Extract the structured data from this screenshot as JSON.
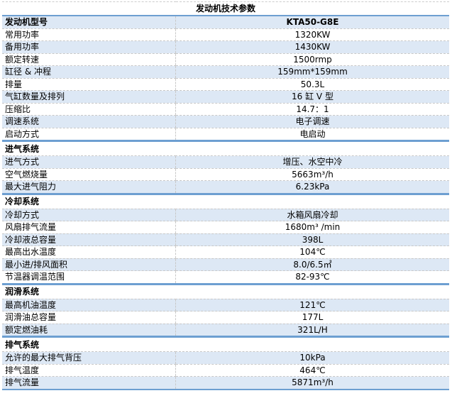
{
  "title": "发动机技术参数",
  "model": {
    "label": "发动机型号",
    "value": "KTA50-G8E"
  },
  "general": [
    {
      "label": "常用功率",
      "value": "1320KW"
    },
    {
      "label": "备用功率",
      "value": "1430KW"
    },
    {
      "label": "额定转速",
      "value": "1500rmp"
    },
    {
      "label": "缸径 & 冲程",
      "value": "159mm*159mm"
    },
    {
      "label": "排量",
      "value": "50.3L"
    },
    {
      "label": "气缸数量及排列",
      "value": "16 缸 V 型"
    },
    {
      "label": "压缩比",
      "value": "14.7：1"
    },
    {
      "label": "调速系统",
      "value": "电子调速"
    },
    {
      "label": "启动方式",
      "value": "电启动"
    }
  ],
  "sections": [
    {
      "title": "进气系统",
      "rows": [
        {
          "label": "进气方式",
          "value": "增压、水空中冷"
        },
        {
          "label": "空气燃烧量",
          "value": "5663m³/h"
        },
        {
          "label": "最大进气阻力",
          "value": "6.23kPa"
        }
      ]
    },
    {
      "title": "冷却系统",
      "rows": [
        {
          "label": "冷却方式",
          "value": "水箱风扇冷却"
        },
        {
          "label": "风扇排气流量",
          "value": "1680m³ /min"
        },
        {
          "label": "冷却液总容量",
          "value": "398L"
        },
        {
          "label": "最高出水温度",
          "value": "104℃"
        },
        {
          "label": "最小进/排风面积",
          "value": "8.0/6.5㎡"
        },
        {
          "label": "节温器调温范围",
          "value": "82-93℃"
        }
      ]
    },
    {
      "title": "润滑系统",
      "rows": [
        {
          "label": "最高机油温度",
          "value": "121℃"
        },
        {
          "label": "润滑油总容量",
          "value": "177L"
        },
        {
          "label": "额定燃油耗",
          "value": "321L/H"
        }
      ]
    },
    {
      "title": "排气系统",
      "rows": [
        {
          "label": "允许的最大排气背压",
          "value": "10kPa"
        },
        {
          "label": "排气温度",
          "value": "464℃"
        },
        {
          "label": "排气流量",
          "value": "5871m³/h"
        }
      ]
    }
  ]
}
